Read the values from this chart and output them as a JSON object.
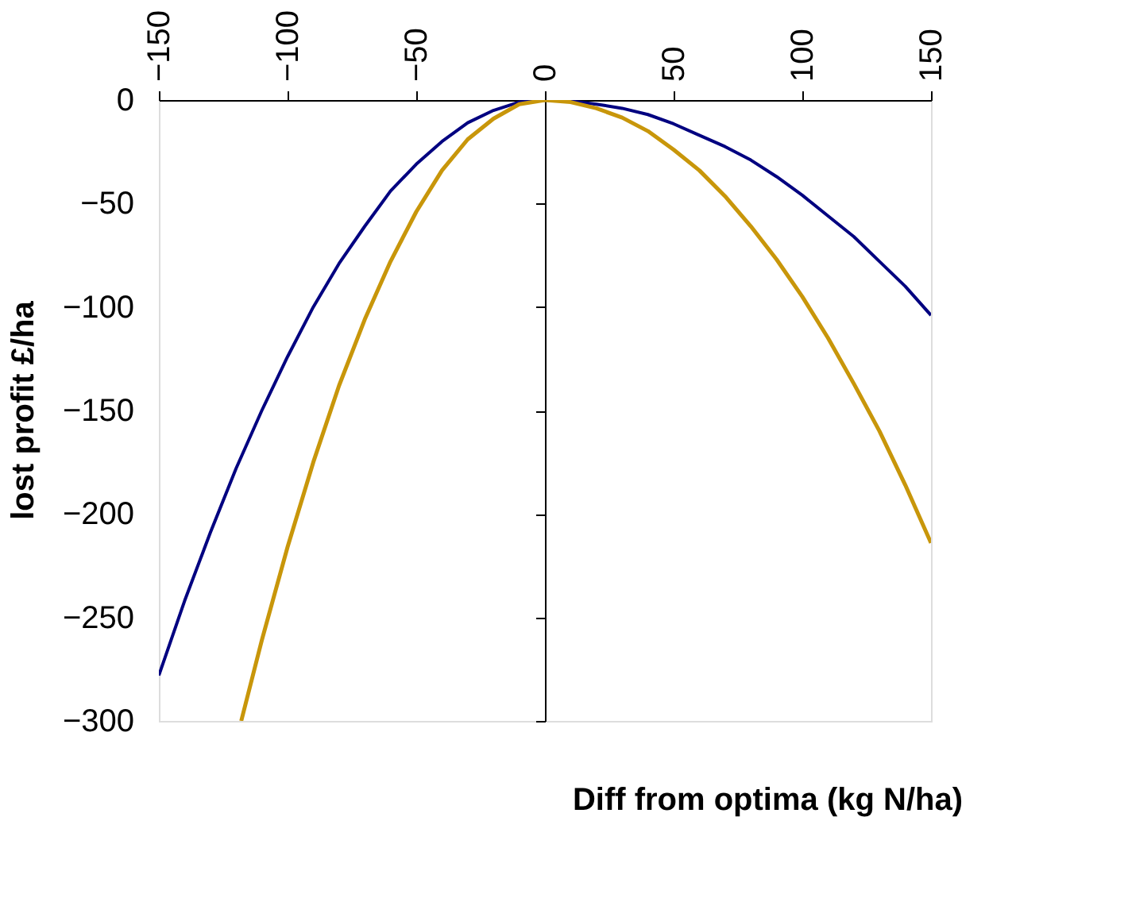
{
  "chart_data": {
    "type": "line",
    "xlabel": "Diff from optima (kg N/ha)",
    "ylabel": "lost profit £/ha",
    "xlim": [
      -150,
      150
    ],
    "xticks": [
      -150,
      -100,
      -50,
      0,
      50,
      100,
      150
    ],
    "ylim": [
      -300,
      0
    ],
    "yticks": [
      0,
      -50,
      -100,
      -150,
      -200,
      -250,
      -300
    ],
    "marker": "none",
    "line_style": "solid",
    "series": [
      {
        "color": "#000080",
        "x": [
          -150,
          -140,
          -130,
          -120,
          -110,
          -100,
          -90,
          -80,
          -70,
          -60,
          -50,
          -40,
          -30,
          -20,
          -10,
          0,
          10,
          20,
          30,
          40,
          50,
          60,
          70,
          80,
          90,
          100,
          110,
          120,
          130,
          140,
          150
        ],
        "values": [
          -278,
          -242,
          -209,
          -178,
          -150,
          -124,
          -100,
          -79,
          -61,
          -44,
          -31,
          -20,
          -11,
          -5,
          -1,
          0,
          -0.5,
          -2,
          -4,
          -7,
          -11.5,
          -17,
          -22.5,
          -29,
          -37,
          -46,
          -56,
          -66,
          -78,
          -90,
          -104
        ]
      },
      {
        "color": "#c8960a",
        "x": [
          -118,
          -110,
          -100,
          -90,
          -80,
          -70,
          -60,
          -50,
          -40,
          -30,
          -20,
          -10,
          0,
          10,
          20,
          30,
          40,
          50,
          60,
          70,
          80,
          90,
          100,
          110,
          120,
          130,
          140,
          150
        ],
        "values": [
          -300,
          -261,
          -216,
          -175,
          -138,
          -106,
          -78,
          -54,
          -34,
          -19,
          -9,
          -2,
          0,
          -1,
          -4,
          -8.5,
          -15,
          -24,
          -34,
          -46.5,
          -61,
          -77,
          -95,
          -115,
          -137,
          -160,
          -186,
          -214
        ]
      }
    ]
  }
}
